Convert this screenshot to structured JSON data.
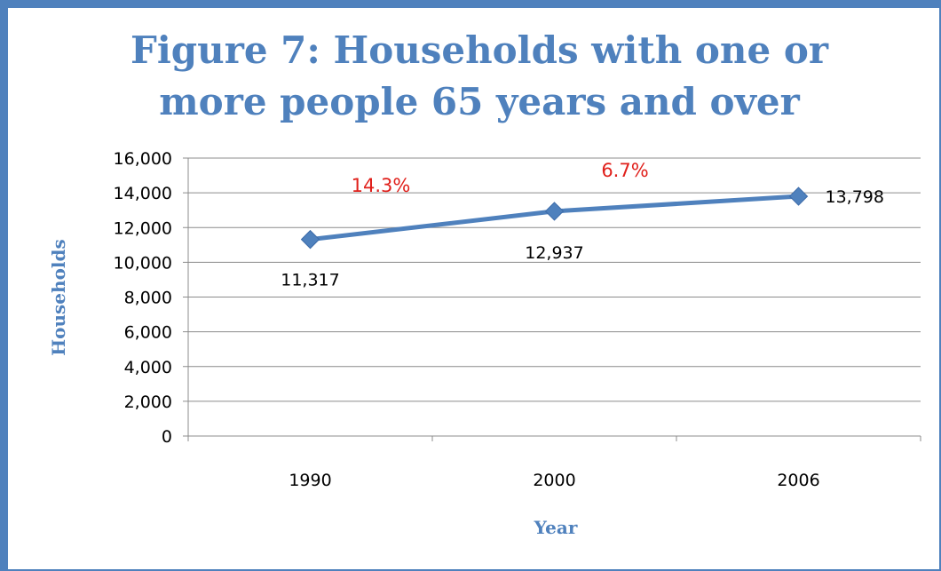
{
  "chart_data": {
    "type": "line",
    "title_lines": [
      "Figure 7: Households with one or",
      "more people 65 years and over"
    ],
    "xlabel": "Year",
    "ylabel": "Households",
    "categories": [
      "1990",
      "2000",
      "2006"
    ],
    "series": [
      {
        "values": [
          11317,
          12937,
          13798
        ],
        "color": "#4F81BD"
      }
    ],
    "data_labels": [
      "11,317",
      "12,937",
      "13,798"
    ],
    "annotations": [
      {
        "text": "14.3%",
        "between": [
          "1990",
          "2000"
        ],
        "color": "#E0201B"
      },
      {
        "text": "6.7%",
        "between": [
          "2000",
          "2006"
        ],
        "color": "#E0201B"
      }
    ],
    "ylim": [
      0,
      16000
    ],
    "yticks": [
      0,
      2000,
      4000,
      6000,
      8000,
      10000,
      12000,
      14000,
      16000
    ],
    "ytick_labels": [
      "0",
      "2,000",
      "4,000",
      "6,000",
      "8,000",
      "10,000",
      "12,000",
      "14,000",
      "16,000"
    ],
    "grid": true,
    "legend": "none",
    "marker": "diamond"
  }
}
